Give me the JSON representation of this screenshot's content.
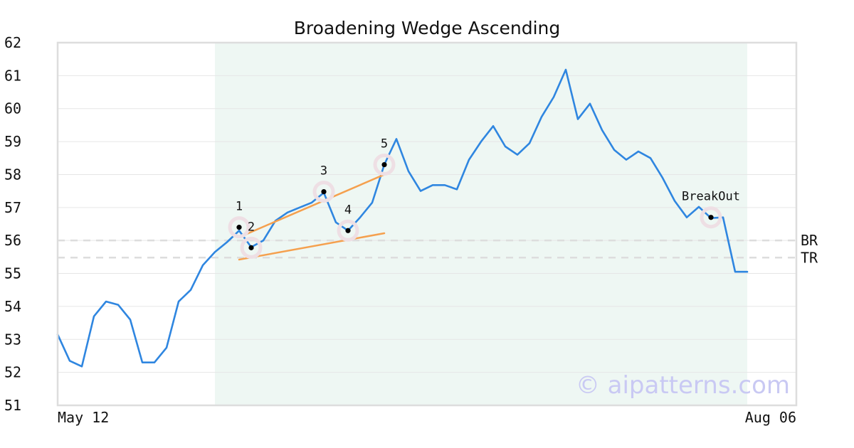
{
  "chart_data": {
    "type": "line",
    "title": "Broadening Wedge Ascending",
    "xlabel": "",
    "ylabel": "",
    "ylim": [
      51,
      62
    ],
    "y_ticks": [
      51,
      52,
      53,
      54,
      55,
      56,
      57,
      58,
      59,
      60,
      61,
      62
    ],
    "x_tick_labels": [
      "May 12",
      "Aug 06"
    ],
    "grid": true,
    "watermark": "© aipatterns.com",
    "colors": {
      "price_line": "#2f86e0",
      "trend_line": "#f5a04e",
      "highlight_region": "#eef7f3",
      "marker_halo": "#eedfe4",
      "marker_dot": "#000000",
      "reference_line": "#dddddd",
      "grid": "#e6e6e6",
      "frame": "#dddddd"
    },
    "series": [
      {
        "values": [
          53.15,
          52.35,
          52.18,
          53.7,
          54.15,
          54.05,
          53.6,
          52.3,
          52.3,
          52.75,
          54.15,
          54.5,
          55.25,
          55.65,
          55.95,
          56.3,
          55.8,
          56.0,
          56.6,
          56.85,
          57.0,
          57.15,
          57.45,
          56.55,
          56.3,
          56.7,
          57.15,
          58.3,
          59.08,
          58.1,
          57.5,
          57.68,
          57.68,
          57.55,
          58.45,
          59.0,
          59.47,
          58.85,
          58.6,
          58.95,
          59.75,
          60.35,
          61.18,
          59.68,
          60.15,
          59.35,
          58.75,
          58.45,
          58.7,
          58.5,
          57.9,
          57.2,
          56.7,
          57.02,
          56.68,
          56.7,
          55.05,
          55.05
        ]
      }
    ],
    "highlight_region": {
      "start_index": 13,
      "end_index": 57
    },
    "trend_lines": [
      {
        "label": "upper",
        "from": {
          "index": 15,
          "value": 56.1
        },
        "to": {
          "index": 27,
          "value": 58.0
        }
      },
      {
        "label": "lower",
        "from": {
          "index": 15,
          "value": 55.42
        },
        "to": {
          "index": 27,
          "value": 56.22
        }
      }
    ],
    "pivots": [
      {
        "label": "1",
        "index": 15,
        "value": 56.4
      },
      {
        "label": "2",
        "index": 16,
        "value": 55.78
      },
      {
        "label": "3",
        "index": 22,
        "value": 57.48
      },
      {
        "label": "4",
        "index": 24,
        "value": 56.3
      },
      {
        "label": "5",
        "index": 27,
        "value": 58.3
      },
      {
        "label": "BreakOut",
        "index": 54,
        "value": 56.7
      }
    ],
    "reference_lines": [
      {
        "label": "BR",
        "value": 56.0
      },
      {
        "label": "TR",
        "value": 55.48
      }
    ]
  }
}
